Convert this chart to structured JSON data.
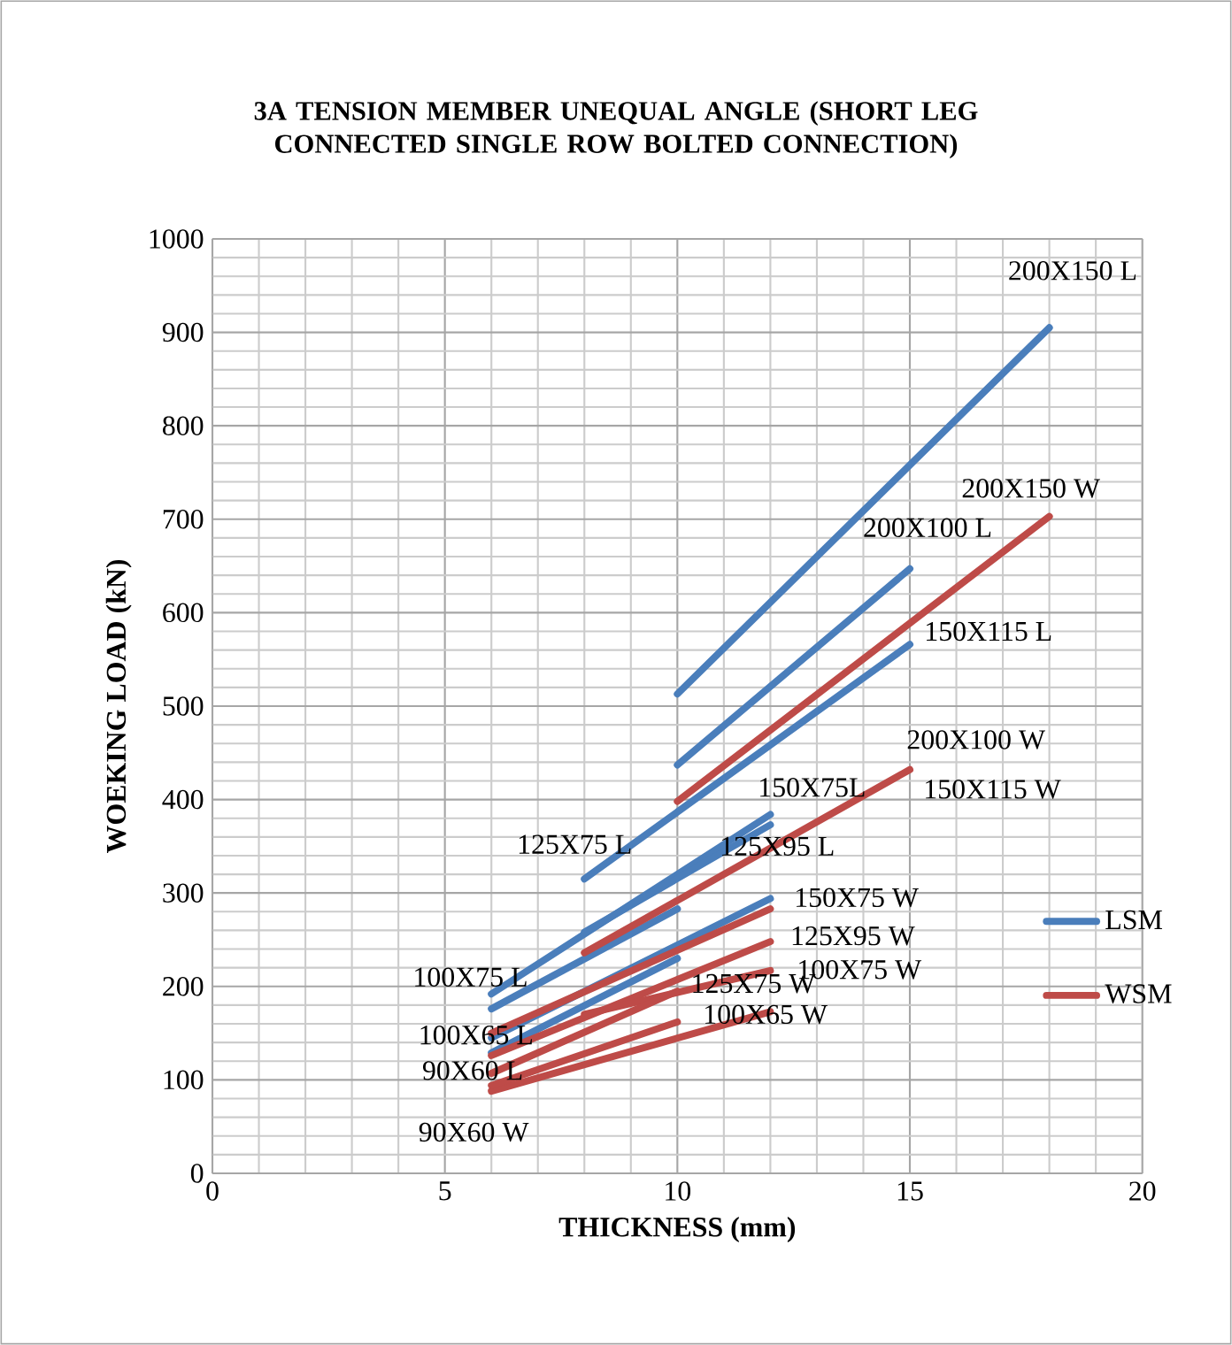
{
  "chart_data": {
    "type": "line",
    "title": "3A    TENSION MEMBER UNEQUAL ANGLE (SHORT LEG CONNECTED SINGLE ROW BOLTED CONNECTION)",
    "xlabel": "THICKNESS (mm)",
    "ylabel": "WOEKING LOAD (kN)",
    "xlim": [
      0,
      20
    ],
    "ylim": [
      0,
      1000
    ],
    "xticks": [
      0,
      5,
      10,
      15,
      20
    ],
    "yticks": [
      0,
      100,
      200,
      300,
      400,
      500,
      600,
      700,
      800,
      900,
      1000
    ],
    "grid": true,
    "legend": "right",
    "marker": "none",
    "line_style": "solid",
    "series": [
      {
        "name": "LSM",
        "color": "#4a7ebb",
        "x": [
          10,
          18
        ],
        "values": [
          513,
          905
        ]
      },
      {
        "color": "#4a7ebb",
        "x": [
          10,
          15
        ],
        "values": [
          437,
          647
        ]
      },
      {
        "color": "#4a7ebb",
        "x": [
          8,
          15
        ],
        "values": [
          315,
          566
        ]
      },
      {
        "color": "#4a7ebb",
        "x": [
          6,
          12
        ],
        "values": [
          192,
          384
        ]
      },
      {
        "color": "#4a7ebb",
        "x": [
          8,
          12
        ],
        "values": [
          258,
          373
        ]
      },
      {
        "color": "#4a7ebb",
        "x": [
          6,
          10
        ],
        "values": [
          176,
          283
        ]
      },
      {
        "color": "#4a7ebb",
        "x": [
          6,
          12
        ],
        "values": [
          145,
          294
        ]
      },
      {
        "color": "#4a7ebb",
        "x": [
          6,
          10
        ],
        "values": [
          129,
          230
        ]
      },
      {
        "name": "WSM",
        "color": "#be4b48",
        "x": [
          10,
          18
        ],
        "values": [
          398,
          703
        ]
      },
      {
        "color": "#be4b48",
        "x": [
          8,
          15
        ],
        "values": [
          236,
          432
        ]
      },
      {
        "color": "#be4b48",
        "x": [
          6,
          12
        ],
        "values": [
          150,
          283
        ]
      },
      {
        "color": "#be4b48",
        "x": [
          6,
          12
        ],
        "values": [
          126,
          248
        ]
      },
      {
        "color": "#be4b48",
        "x": [
          8,
          12
        ],
        "values": [
          170,
          217
        ]
      },
      {
        "color": "#be4b48",
        "x": [
          6,
          10
        ],
        "values": [
          107,
          195
        ]
      },
      {
        "color": "#be4b48",
        "x": [
          6,
          12
        ],
        "values": [
          88,
          173
        ]
      },
      {
        "color": "#be4b48",
        "x": [
          6,
          10
        ],
        "values": [
          94,
          162
        ]
      }
    ],
    "annotations": [
      "200X150 L",
      "200X150 W",
      "200X100 L",
      "150X115 L",
      "200X100 W",
      "150X115 W",
      "150X75L",
      "125X95 L",
      "125X75 L",
      "150X75 W",
      "125X95 W",
      "100X75 W",
      "125X75 W",
      "100X65 W",
      "100X75 L",
      "100X65 L",
      "90X60 L",
      "90X60 W"
    ]
  }
}
